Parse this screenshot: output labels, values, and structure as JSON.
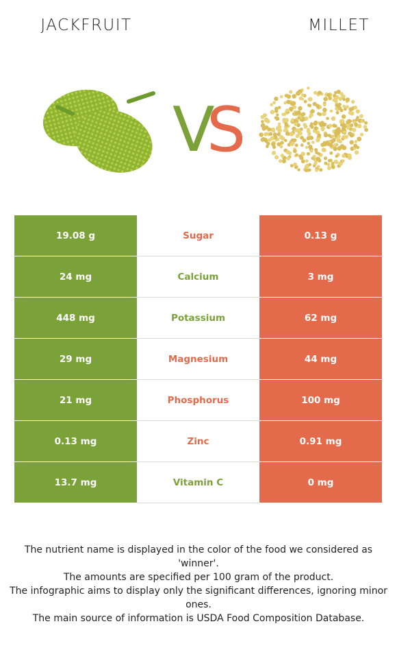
{
  "header": {
    "left_food": "JACKFRUIT",
    "right_food": "MILLET",
    "vs_v": "V",
    "vs_s": "S"
  },
  "colors": {
    "left": "#7aa238",
    "right": "#e36b4b"
  },
  "rows": [
    {
      "nutrient": "Sugar",
      "left": "19.08 g",
      "right": "0.13 g",
      "winner": "right"
    },
    {
      "nutrient": "Calcium",
      "left": "24 mg",
      "right": "3 mg",
      "winner": "left"
    },
    {
      "nutrient": "Potassium",
      "left": "448 mg",
      "right": "62 mg",
      "winner": "left"
    },
    {
      "nutrient": "Magnesium",
      "left": "29 mg",
      "right": "44 mg",
      "winner": "right"
    },
    {
      "nutrient": "Phosphorus",
      "left": "21 mg",
      "right": "100 mg",
      "winner": "right"
    },
    {
      "nutrient": "Zinc",
      "left": "0.13 mg",
      "right": "0.91 mg",
      "winner": "right"
    },
    {
      "nutrient": "Vitamin C",
      "left": "13.7 mg",
      "right": "0 mg",
      "winner": "left"
    }
  ],
  "notes": [
    "The nutrient name is displayed in the color of the food we considered as 'winner'.",
    "The amounts are specified per 100 gram of the product.",
    "The infographic aims to display only the significant differences, ignoring minor ones.",
    "The main source of information is USDA Food Composition Database."
  ]
}
